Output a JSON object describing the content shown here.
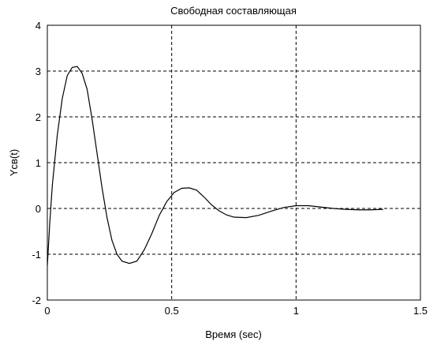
{
  "chart_data": {
    "type": "line",
    "title": "Свободная составляющая",
    "x_label": "Время (sec)",
    "y_label": "Yсв(t)",
    "x": [
      0,
      0.01,
      0.02,
      0.04,
      0.06,
      0.08,
      0.1,
      0.12,
      0.14,
      0.16,
      0.18,
      0.2,
      0.22,
      0.24,
      0.26,
      0.28,
      0.3,
      0.33,
      0.36,
      0.39,
      0.42,
      0.45,
      0.48,
      0.51,
      0.54,
      0.57,
      0.6,
      0.63,
      0.66,
      0.69,
      0.72,
      0.75,
      0.8,
      0.85,
      0.9,
      0.95,
      1.0,
      1.05,
      1.1,
      1.15,
      1.2,
      1.25,
      1.3,
      1.35
    ],
    "series": [
      {
        "color": "#000000",
        "values": [
          -1.25,
          -0.3,
          0.5,
          1.6,
          2.4,
          2.9,
          3.08,
          3.1,
          2.95,
          2.6,
          1.95,
          1.2,
          0.45,
          -0.2,
          -0.7,
          -1.0,
          -1.15,
          -1.2,
          -1.15,
          -0.9,
          -0.55,
          -0.15,
          0.15,
          0.35,
          0.44,
          0.45,
          0.4,
          0.25,
          0.08,
          -0.05,
          -0.14,
          -0.19,
          -0.2,
          -0.15,
          -0.06,
          0.02,
          0.06,
          0.06,
          0.03,
          0.0,
          -0.02,
          -0.03,
          -0.03,
          -0.02
        ]
      }
    ],
    "xlim": [
      0,
      1.5
    ],
    "ylim": [
      -2,
      4
    ],
    "xticks": [
      0,
      0.5,
      1,
      1.5
    ],
    "yticks": [
      -2,
      -1,
      0,
      1,
      2,
      3,
      4
    ],
    "grid": true
  }
}
